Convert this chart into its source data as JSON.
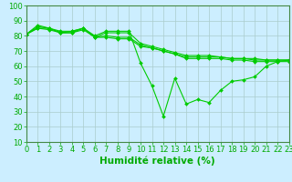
{
  "series": [
    {
      "x": [
        0,
        1,
        2,
        3,
        4,
        5,
        6,
        7,
        8,
        9,
        10,
        11,
        12,
        13,
        14,
        15,
        16,
        17,
        18,
        19,
        20,
        21,
        22,
        23
      ],
      "y": [
        81,
        87,
        85,
        82,
        82,
        85,
        80,
        83,
        83,
        83,
        62,
        47,
        27,
        52,
        35,
        38,
        36,
        44,
        50,
        51,
        53,
        60,
        63,
        64
      ]
    },
    {
      "x": [
        0,
        1,
        2,
        3,
        4,
        5,
        6,
        7,
        8,
        9,
        10,
        11,
        12,
        13,
        14,
        15,
        16,
        17,
        18,
        19,
        20,
        21,
        22,
        23
      ],
      "y": [
        81,
        86,
        85,
        83,
        83,
        85,
        79,
        82,
        82,
        82,
        75,
        73,
        71,
        69,
        67,
        67,
        67,
        66,
        65,
        65,
        65,
        64,
        64,
        64
      ]
    },
    {
      "x": [
        0,
        1,
        2,
        3,
        4,
        5,
        6,
        7,
        8,
        9,
        10,
        11,
        12,
        13,
        14,
        15,
        16,
        17,
        18,
        19,
        20,
        21,
        22,
        23
      ],
      "y": [
        81,
        85,
        85,
        82,
        83,
        85,
        79,
        80,
        79,
        79,
        74,
        72,
        70,
        68,
        66,
        66,
        66,
        66,
        65,
        65,
        64,
        64,
        64,
        64
      ]
    },
    {
      "x": [
        0,
        1,
        2,
        3,
        4,
        5,
        6,
        7,
        8,
        9,
        10,
        11,
        12,
        13,
        14,
        15,
        16,
        17,
        18,
        19,
        20,
        21,
        22,
        23
      ],
      "y": [
        81,
        85,
        84,
        82,
        82,
        84,
        79,
        79,
        78,
        78,
        73,
        72,
        70,
        68,
        65,
        65,
        65,
        65,
        64,
        64,
        63,
        63,
        63,
        63
      ]
    }
  ],
  "line_color": "#00cc00",
  "marker": "D",
  "marker_size": 2.0,
  "line_width": 0.8,
  "xlim": [
    0,
    23
  ],
  "ylim": [
    10,
    100
  ],
  "yticks": [
    10,
    20,
    30,
    40,
    50,
    60,
    70,
    80,
    90,
    100
  ],
  "xticks": [
    0,
    1,
    2,
    3,
    4,
    5,
    6,
    7,
    8,
    9,
    10,
    11,
    12,
    13,
    14,
    15,
    16,
    17,
    18,
    19,
    20,
    21,
    22,
    23
  ],
  "xlabel": "Humidité relative (%)",
  "xlabel_fontsize": 7.5,
  "tick_fontsize": 6.0,
  "bg_color": "#cceeff",
  "grid_color": "#aacccc",
  "axis_color": "#448844",
  "tick_color": "#00aa00",
  "xlabel_color": "#00aa00"
}
